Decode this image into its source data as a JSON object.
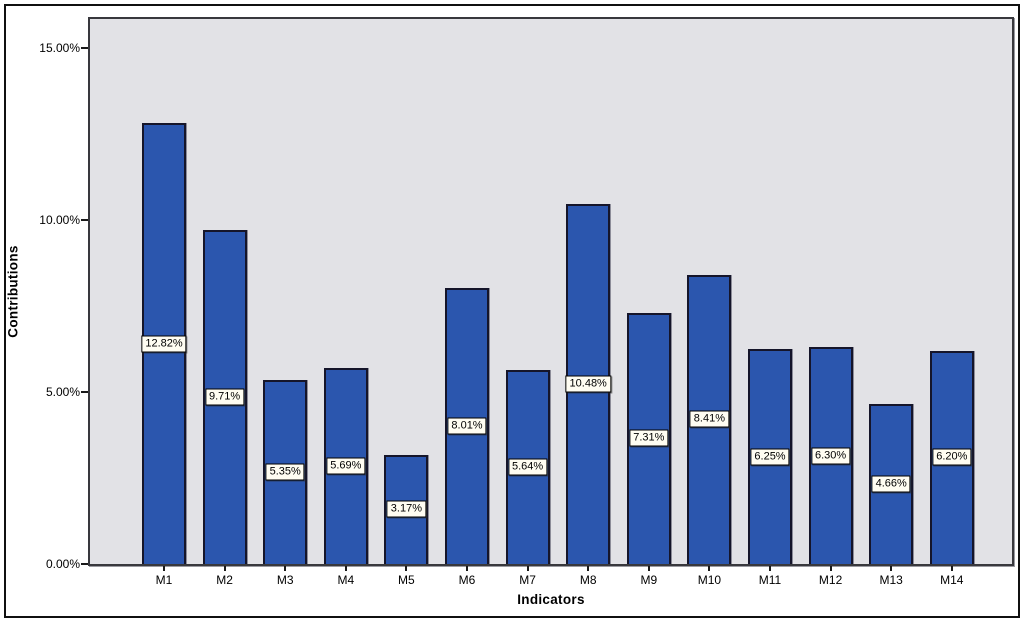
{
  "chart_data": {
    "type": "bar",
    "categories": [
      "M1",
      "M2",
      "M3",
      "M4",
      "M5",
      "M6",
      "M7",
      "M8",
      "M9",
      "M10",
      "M11",
      "M12",
      "M13",
      "M14"
    ],
    "values": [
      12.82,
      9.71,
      5.35,
      5.69,
      3.17,
      8.01,
      5.64,
      10.48,
      7.31,
      8.41,
      6.25,
      6.3,
      4.66,
      6.2
    ],
    "bar_labels": [
      "12.82%",
      "9.71%",
      "5.35%",
      "5.69%",
      "3.17%",
      "8.01%",
      "5.64%",
      "10.48%",
      "7.31%",
      "8.41%",
      "6.25%",
      "6.30%",
      "4.66%",
      "6.20%"
    ],
    "title": "",
    "xlabel": "Indicators",
    "ylabel": "Contributions",
    "ylim": [
      0,
      15.9
    ],
    "yticks": [
      {
        "value": 0,
        "label": "0.00%"
      },
      {
        "value": 5,
        "label": "5.00%"
      },
      {
        "value": 10,
        "label": "10.00%"
      },
      {
        "value": 15,
        "label": "15.00%"
      }
    ],
    "grid": false,
    "legend": "none",
    "label_position": "middle-of-bar",
    "colors": {
      "bar_fill": "#2b56ae",
      "bar_border": "#15152a",
      "plot_bg": "#e2e2e6",
      "plot_border": "#38383d",
      "value_label_bg": "#fffdf2",
      "value_label_border": "#000000",
      "frame_border": "#101010",
      "text": "#000000"
    }
  }
}
